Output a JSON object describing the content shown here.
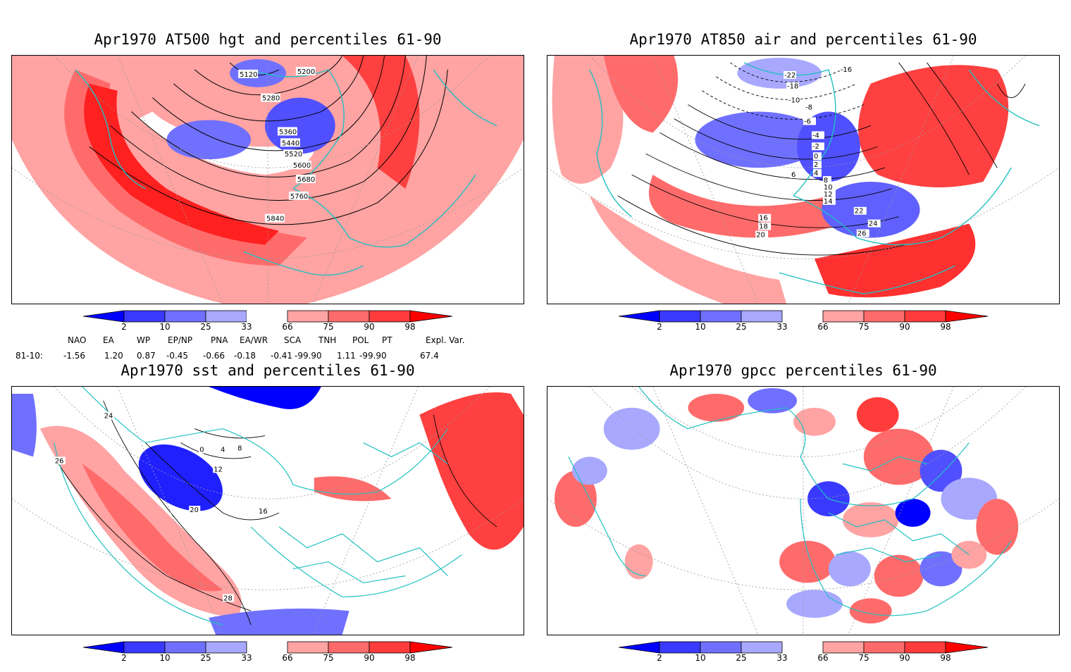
{
  "panels": {
    "hgt": {
      "title": "Apr1970 AT500 hgt and percentiles 61-90",
      "contour_labels": [
        "5120",
        "5200",
        "5280",
        "5360",
        "5440",
        "5520",
        "5600",
        "5680",
        "5760",
        "5840"
      ]
    },
    "air": {
      "title": "Apr1970 AT850 air and percentiles 61-90",
      "contour_labels": [
        "-22",
        "-16",
        "-18",
        "-10",
        "-8",
        "-6",
        "-4",
        "-2",
        "0",
        "2",
        "4",
        "6",
        "8",
        "10",
        "12",
        "14",
        "16",
        "18",
        "20",
        "22",
        "24",
        "26"
      ]
    },
    "sst": {
      "title": "Apr1970 sst and percentiles 61-90",
      "contour_labels": [
        "24",
        "26",
        "20",
        "16",
        "12",
        "8",
        "4",
        "0",
        "28"
      ]
    },
    "gpcc": {
      "title": "Apr1970 gpcc percentiles 61-90"
    }
  },
  "colorbar": {
    "labels": [
      "2",
      "10",
      "25",
      "33",
      "66",
      "75",
      "90",
      "98"
    ],
    "colors": {
      "blue_extreme": "#0000ff",
      "blue_strong": "#3a3aff",
      "blue_mid": "#7070ff",
      "blue_light": "#a8a8ff",
      "neutral": "#ffffff",
      "red_light": "#ffa3a3",
      "red_mid": "#ff6b6b",
      "red_strong": "#ff3c3c",
      "red_extreme": "#ff0000"
    }
  },
  "indices": {
    "headers": [
      "NAO",
      "EA",
      "WP",
      "EP/NP",
      "PNA",
      "EA/WR",
      "SCA",
      "TNH",
      "POL",
      "PT",
      "Expl. Var."
    ],
    "row_label": "81-10:",
    "values": [
      "-1.56",
      "1.20",
      "0.87",
      "-0.45",
      "-0.66",
      "-0.18",
      "-0.41",
      "-99.90",
      "1.11",
      "-99.90",
      "67.4"
    ]
  },
  "colors": {
    "coast": "#20c0c0",
    "contour": "#000000",
    "grid": "#999999"
  }
}
